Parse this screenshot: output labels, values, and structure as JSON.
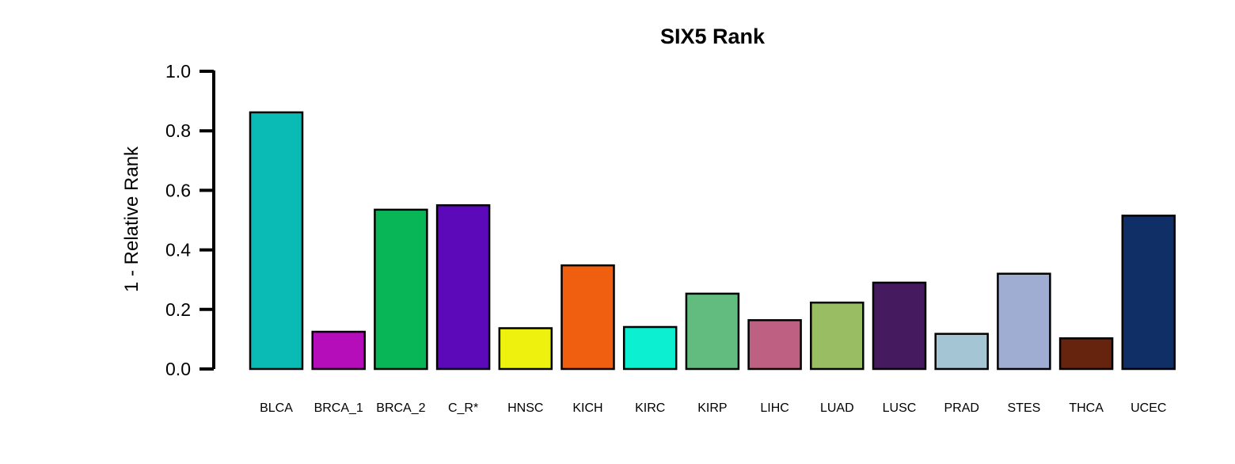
{
  "chart_data": {
    "type": "bar",
    "title": "SIX5 Rank",
    "xlabel": "",
    "ylabel": "1 - Relative Rank",
    "ylim": [
      0,
      1.0
    ],
    "yticks": [
      "0.0",
      "0.2",
      "0.4",
      "0.6",
      "0.8",
      "1.0"
    ],
    "grid": false,
    "categories": [
      "BLCA",
      "BRCA_1",
      "BRCA_2",
      "C_R*",
      "HNSC",
      "KICH",
      "KIRC",
      "KIRP",
      "LIHC",
      "LUAD",
      "LUSC",
      "PRAD",
      "STES",
      "THCA",
      "UCEC"
    ],
    "values": [
      0.862,
      0.125,
      0.535,
      0.55,
      0.137,
      0.348,
      0.141,
      0.253,
      0.164,
      0.223,
      0.29,
      0.118,
      0.32,
      0.103,
      0.515
    ],
    "colors": [
      "#0ABAB5",
      "#B40DB9",
      "#08B658",
      "#5B09B9",
      "#EEF10D",
      "#F05F10",
      "#0DEFD1",
      "#62BB7F",
      "#BE6081",
      "#98BD62",
      "#461A5F",
      "#A3C5D4",
      "#A0ADD2",
      "#66240F",
      "#0F2F66"
    ]
  }
}
